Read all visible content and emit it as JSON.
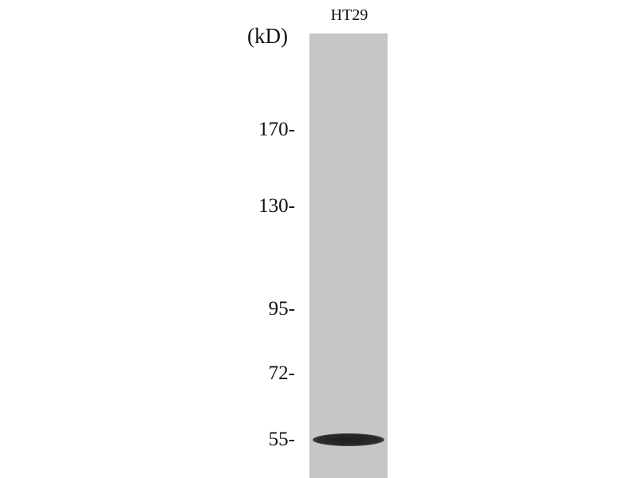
{
  "lane_label": "HT29",
  "unit_label": "(kD)",
  "markers": [
    {
      "label": "170-",
      "kD": 170
    },
    {
      "label": "130-",
      "kD": 130
    },
    {
      "label": "95-",
      "kD": 95
    },
    {
      "label": "72-",
      "kD": 72
    },
    {
      "label": "55-",
      "kD": 55
    }
  ],
  "bands": [
    {
      "lane": "HT29",
      "kD": 55
    }
  ],
  "colors": {
    "membrane": "#c6c6c6",
    "band": "#222222"
  }
}
